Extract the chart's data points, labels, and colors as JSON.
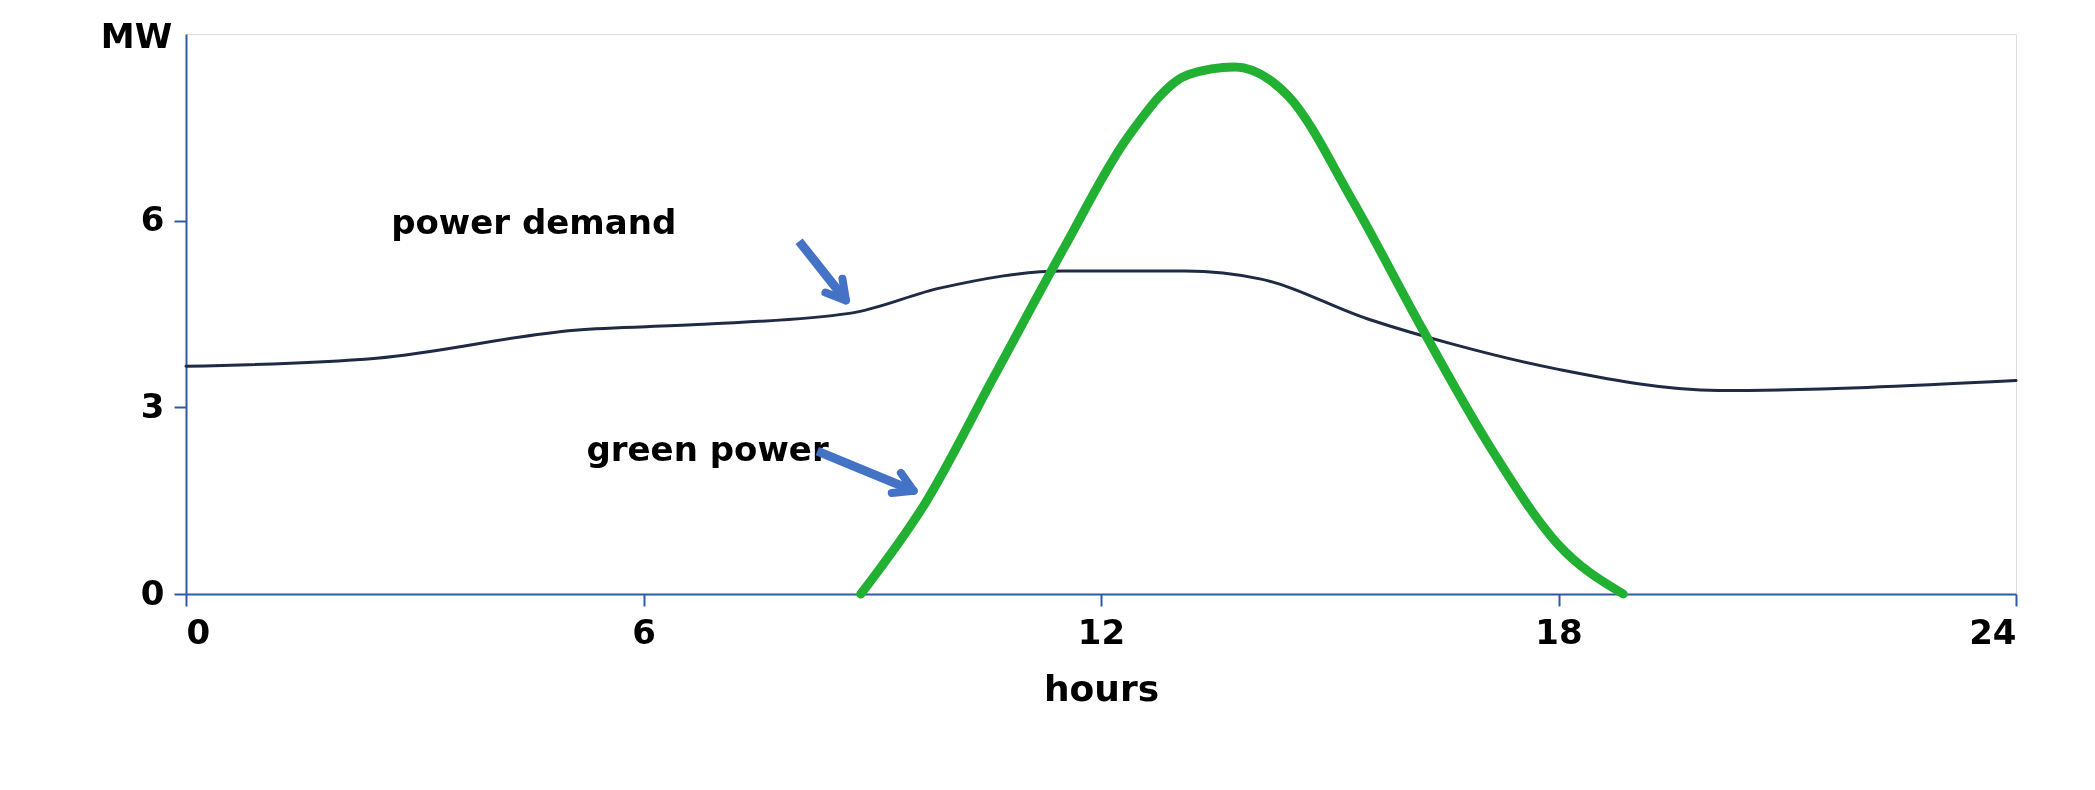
{
  "chart_data": {
    "type": "line",
    "xlabel": "hours",
    "ylabel": "MW",
    "xlim": [
      0,
      24
    ],
    "xticks": [
      0,
      6,
      12,
      18,
      24
    ],
    "ylim": [
      0,
      9
    ],
    "yticks": [
      0,
      3,
      6
    ],
    "grid": false,
    "marker": "none",
    "line_style": "solid",
    "series": [
      {
        "name": "power demand",
        "color": "#1f2a44",
        "x": [
          0,
          2.5,
          5.1,
          6.7,
          8.7,
          9.9,
          11.5,
          13.1,
          14.1,
          15.5,
          16.6,
          18,
          20.1,
          24
        ],
        "values": [
          3.66,
          3.79,
          4.24,
          4.33,
          4.51,
          4.92,
          5.19,
          5.19,
          5.06,
          4.42,
          4.02,
          3.61,
          3.27,
          3.43
        ]
      },
      {
        "name": "green power",
        "color": "#22b033",
        "x": [
          8.85,
          9.7,
          10.6,
          11.5,
          12.35,
          13.15,
          13.75,
          14.45,
          15.3,
          16.2,
          17.1,
          18,
          18.85
        ],
        "values": [
          0,
          1.47,
          3.5,
          5.53,
          7.34,
          8.35,
          8.47,
          8.01,
          6.32,
          4.29,
          2.37,
          0.79,
          0
        ]
      }
    ]
  }
}
